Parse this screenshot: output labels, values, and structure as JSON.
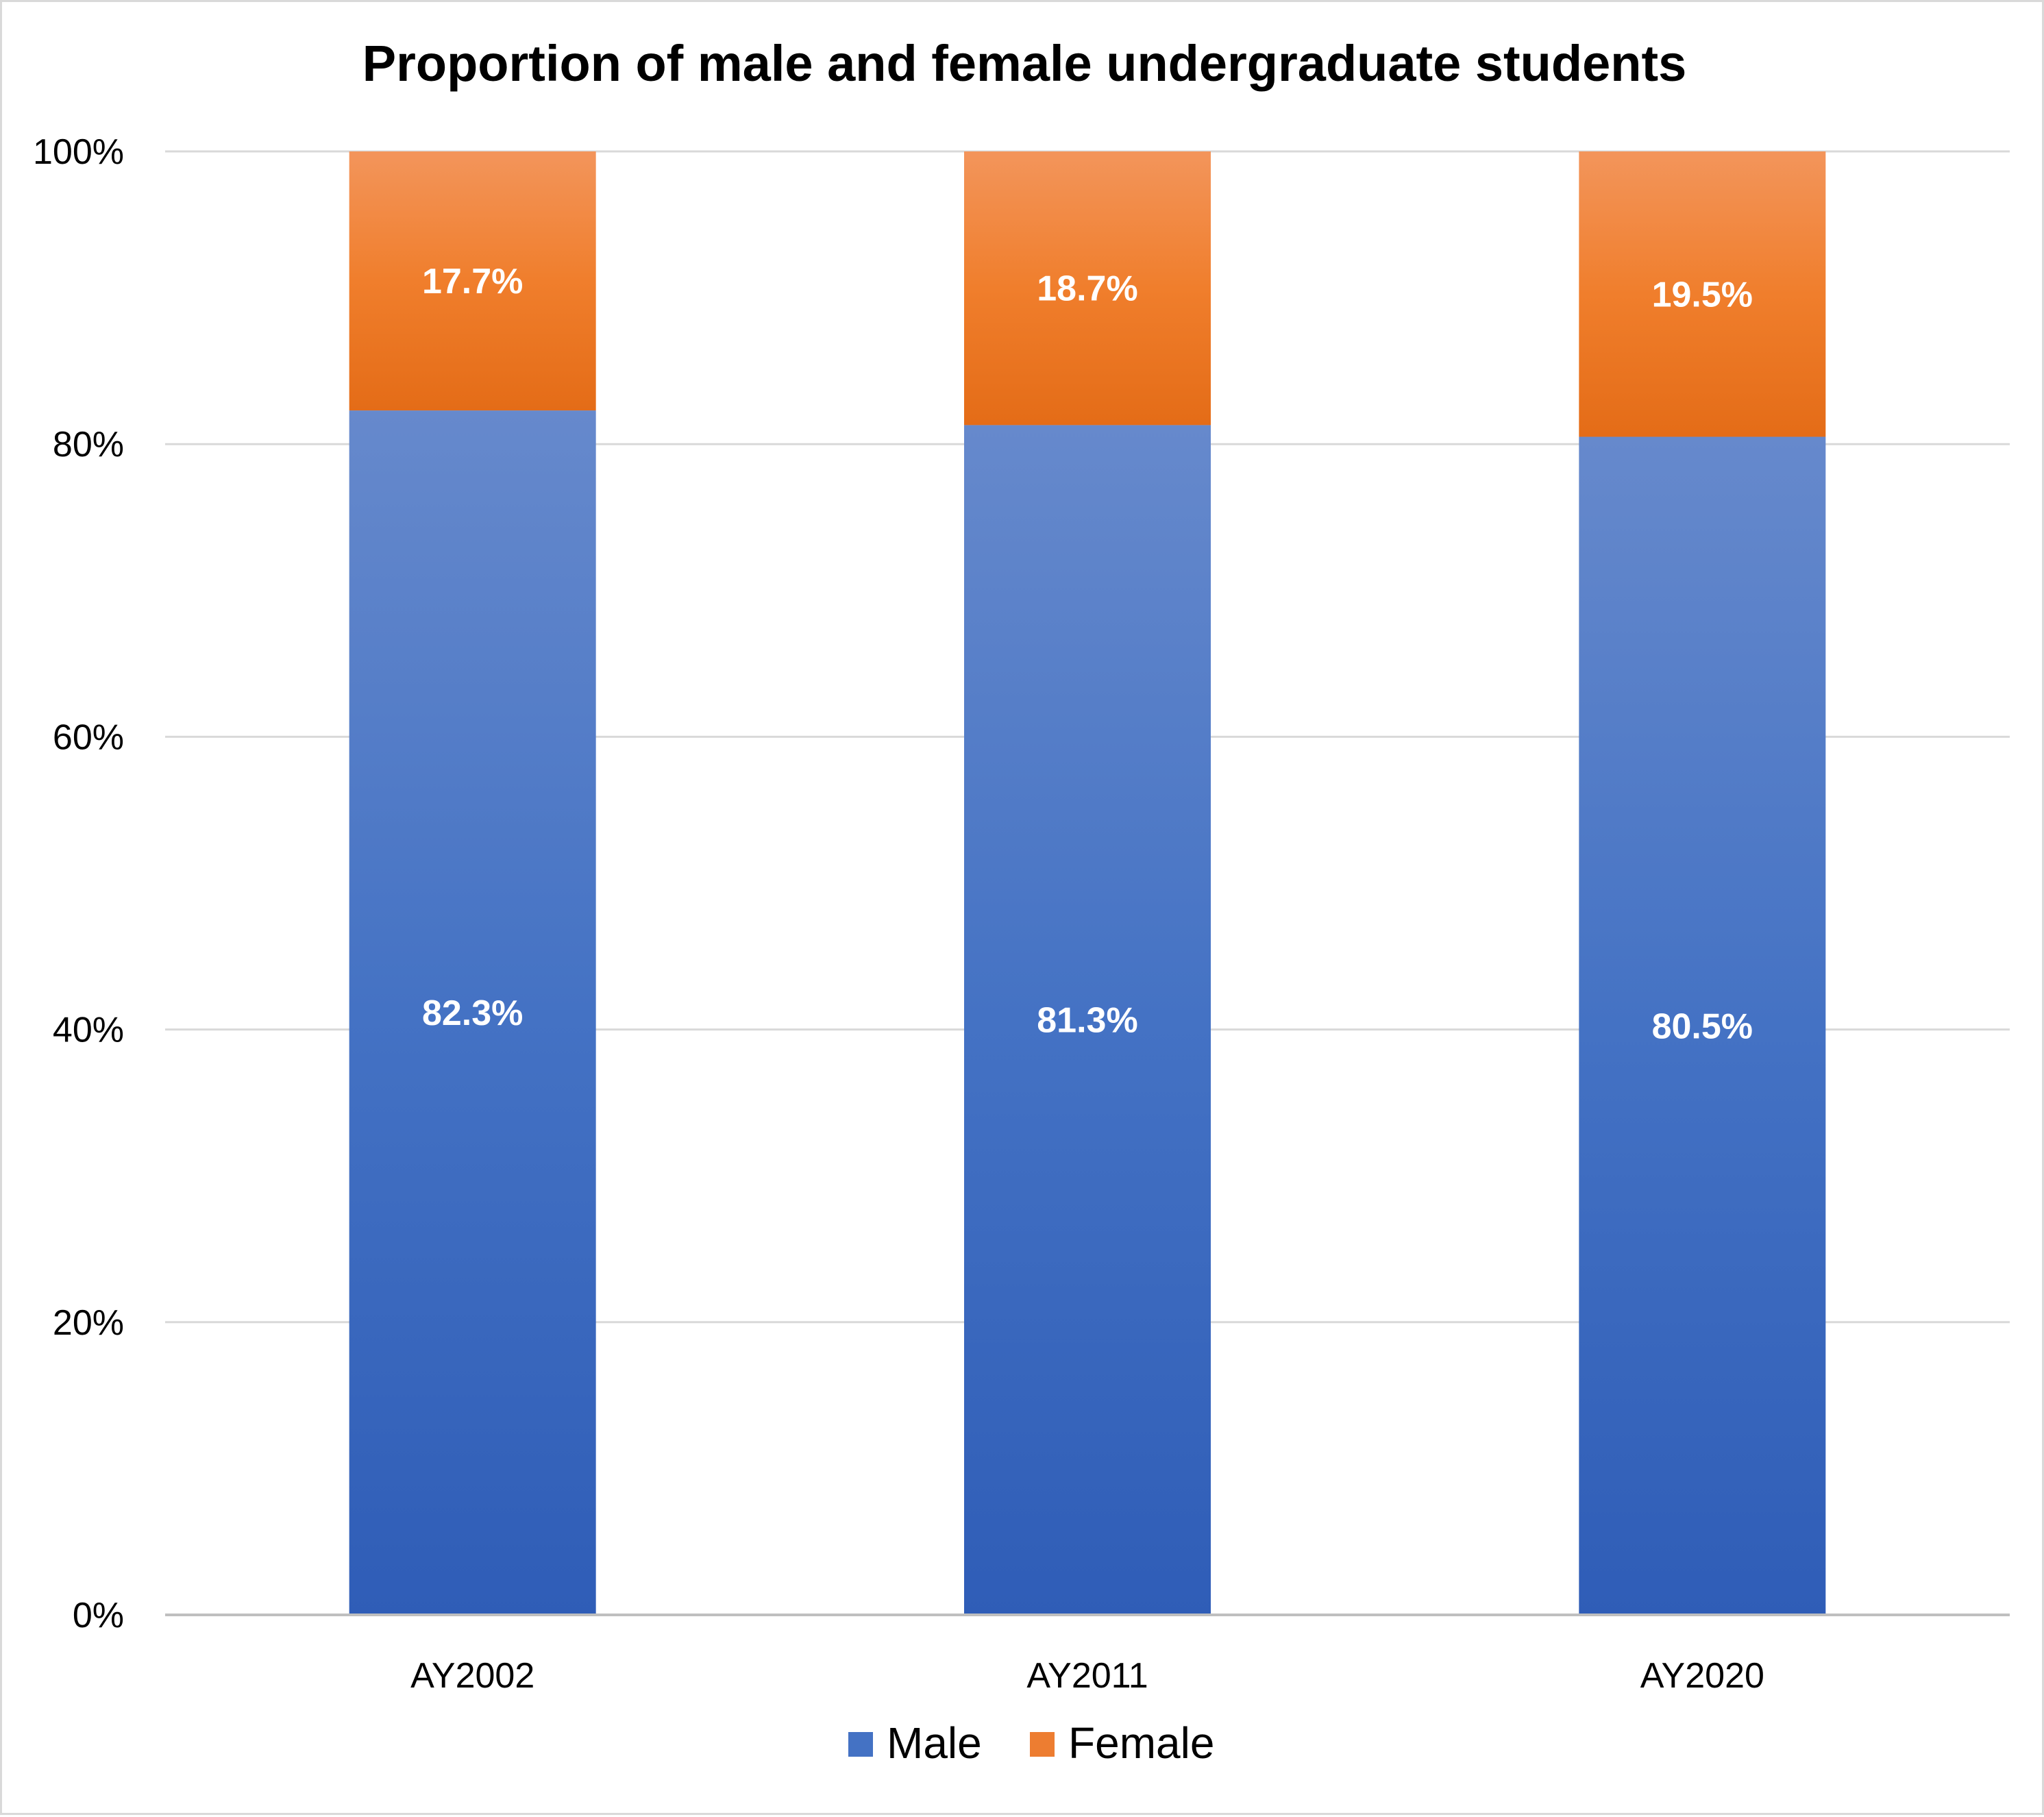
{
  "chart_data": {
    "type": "bar",
    "stacked": true,
    "title": "Proportion of male and female undergraduate students",
    "categories": [
      "AY2002",
      "AY2011",
      "AY2020"
    ],
    "series": [
      {
        "name": "Male",
        "values": [
          82.3,
          81.3,
          80.5
        ],
        "labels": [
          "82.3%",
          "81.3%",
          "80.5%"
        ],
        "color": "#4472C4"
      },
      {
        "name": "Female",
        "values": [
          17.7,
          18.7,
          19.5
        ],
        "labels": [
          "17.7%",
          "18.7%",
          "19.5%"
        ],
        "color": "#ED7D31"
      }
    ],
    "ylim": [
      0,
      100
    ],
    "yticks": [
      0,
      20,
      40,
      60,
      80,
      100
    ],
    "ytick_labels": [
      "0%",
      "20%",
      "40%",
      "60%",
      "80%",
      "100%"
    ],
    "grid": true,
    "legend": "bottom"
  }
}
